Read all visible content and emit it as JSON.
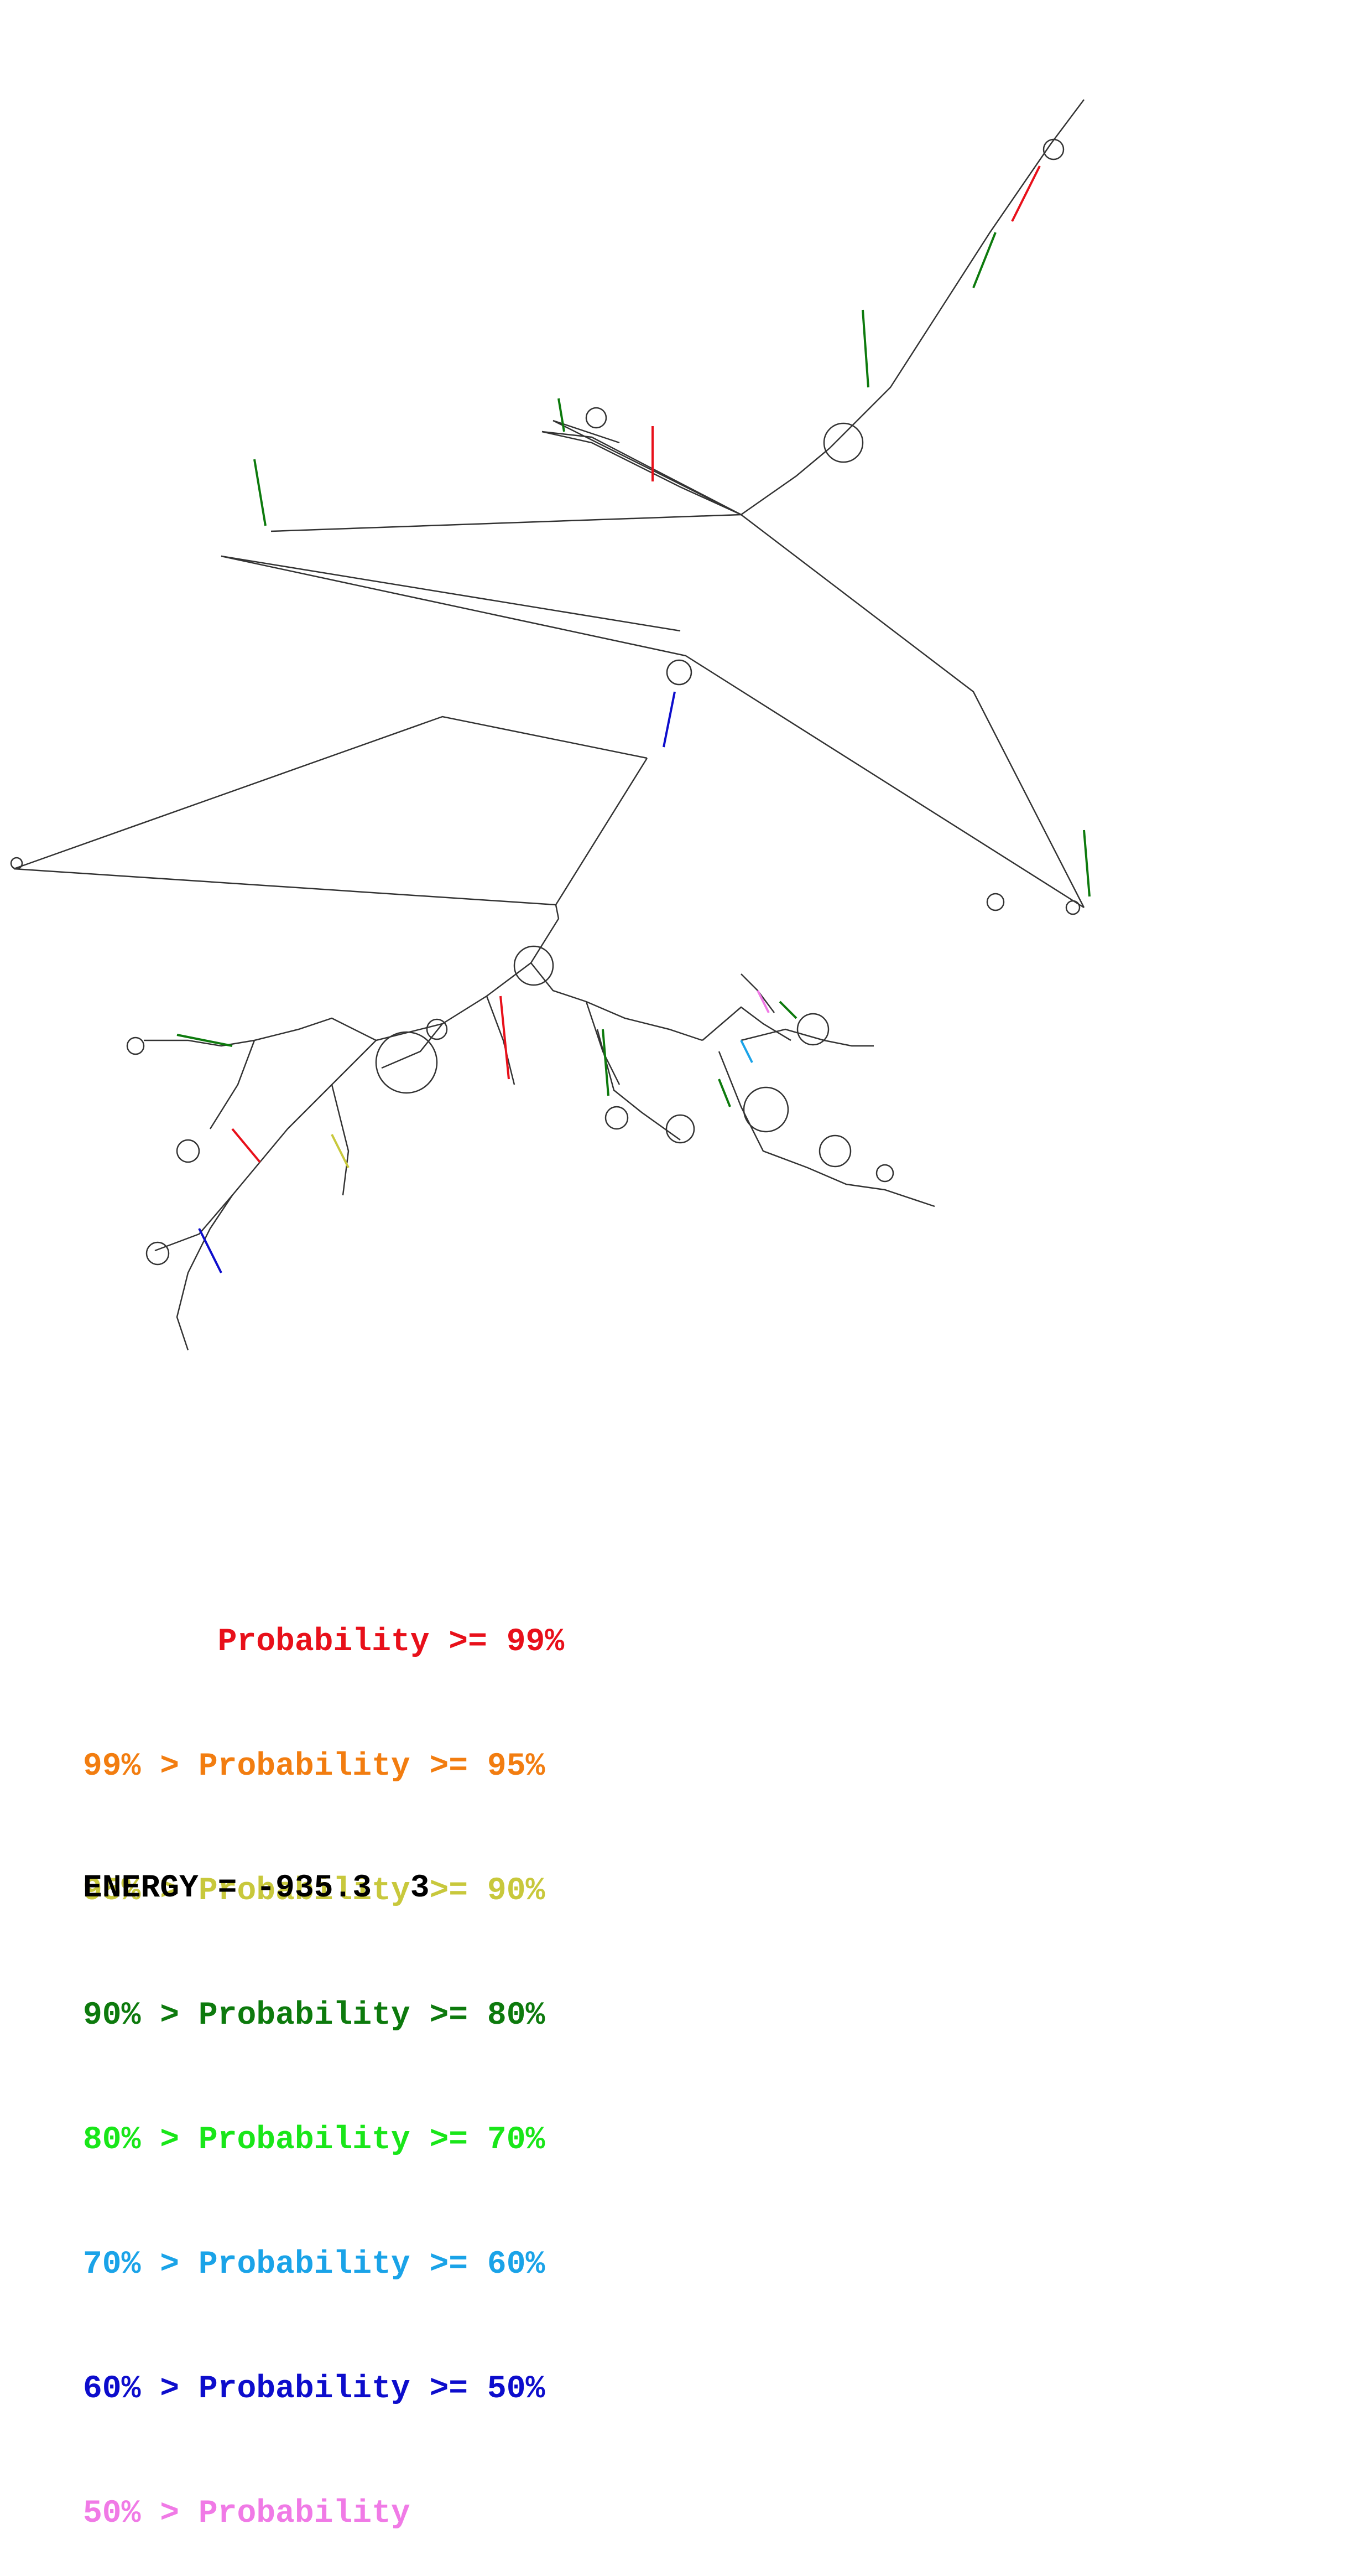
{
  "legend": {
    "rows": [
      {
        "text": "       Probability >= 99%",
        "color": "#e8101a"
      },
      {
        "text": "99% > Probability >= 95%",
        "color": "#f27d10"
      },
      {
        "text": "95% > Probability >= 90%",
        "color": "#c8c83c"
      },
      {
        "text": "90% > Probability >= 80%",
        "color": "#0d7a0d"
      },
      {
        "text": "80% > Probability >= 70%",
        "color": "#19e619"
      },
      {
        "text": "70% > Probability >= 60%",
        "color": "#1aa3e8"
      },
      {
        "text": "60% > Probability >= 50%",
        "color": "#0d0dcc"
      },
      {
        "text": "50% > Probability",
        "color": "#f07ae6"
      }
    ]
  },
  "energy": {
    "label": "ENERGY = -935.3  3"
  },
  "structure": {
    "line_color": "#333333",
    "pair_colors": [
      "#e8101a",
      "#0d7a0d",
      "#0d0dcc",
      "#c8c83c",
      "#f07ae6",
      "#1aa3e8"
    ]
  }
}
